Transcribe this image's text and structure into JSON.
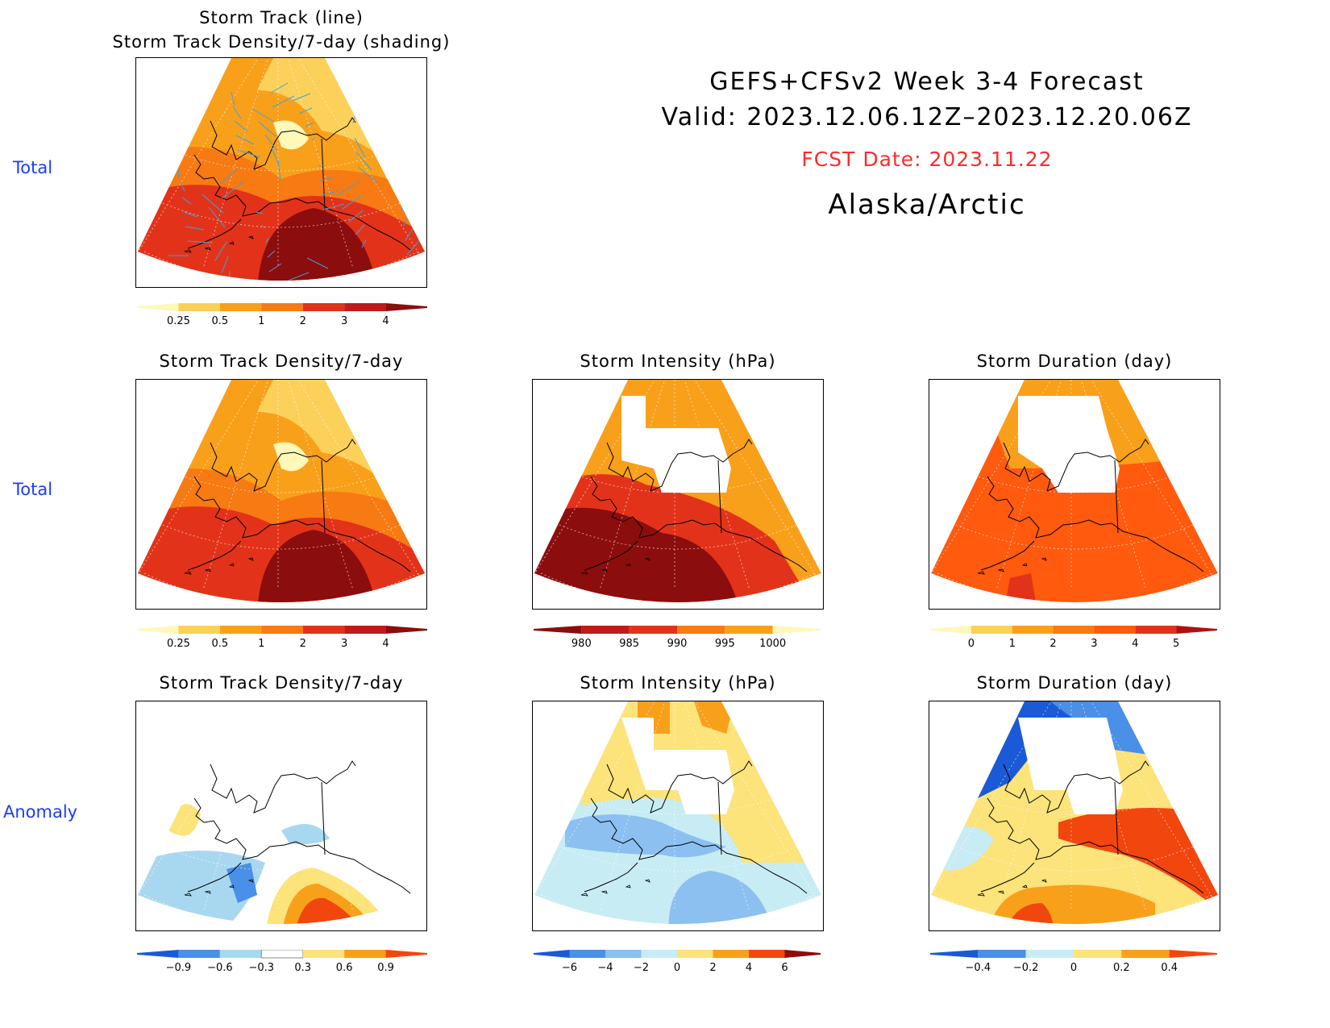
{
  "header": {
    "title": "GEFS+CFSv2 Week 3-4 Forecast",
    "valid": "Valid: 2023.12.06.12Z–2023.12.20.06Z",
    "fcst_date": "FCST Date: 2023.11.22",
    "region": "Alaska/Arctic",
    "fcst_color": "#ff2a2a"
  },
  "row_labels": {
    "row1": "Total",
    "row2": "Total",
    "row3": "Anomaly"
  },
  "panels": {
    "p1": {
      "title_line1": "Storm Track (line)",
      "title_line2": "Storm Track Density/7-day (shading)"
    },
    "p2": {
      "title": "Storm Track Density/7-day"
    },
    "p3": {
      "title": "Storm Intensity (hPa)"
    },
    "p4": {
      "title": "Storm Duration (day)"
    },
    "p5": {
      "title": "Storm Track Density/7-day"
    },
    "p6": {
      "title": "Storm Intensity (hPa)"
    },
    "p7": {
      "title": "Storm Duration (day)"
    }
  },
  "colorbars": {
    "density": {
      "labels": [
        "0.25",
        "0.5",
        "1",
        "2",
        "3",
        "4"
      ],
      "colors": [
        "#fff8b8",
        "#fcd15a",
        "#f9a01b",
        "#f77a12",
        "#e2331a",
        "#c11a1a",
        "#8c0d0d"
      ]
    },
    "intensity": {
      "labels": [
        "980",
        "985",
        "990",
        "995",
        "1000"
      ],
      "colors": [
        "#8c0d0d",
        "#c11a1a",
        "#e2331a",
        "#f77a12",
        "#f9a01b",
        "#fff8b8"
      ]
    },
    "duration": {
      "labels": [
        "0",
        "1",
        "2",
        "3",
        "4",
        "5"
      ],
      "colors": [
        "#fff8b8",
        "#fcd15a",
        "#f9a01b",
        "#f77a12",
        "#ff5a0e",
        "#e2331a",
        "#b01010"
      ]
    },
    "density_anom": {
      "labels": [
        "−0.9",
        "−0.6",
        "−0.3",
        "0.3",
        "0.6",
        "0.9"
      ],
      "colors": [
        "#1a5ad6",
        "#4a8fe8",
        "#a8d8f0",
        "#ffffff",
        "#fce37a",
        "#f9a01b",
        "#f2460f"
      ]
    },
    "intensity_anom": {
      "labels": [
        "−6",
        "−4",
        "−2",
        "0",
        "2",
        "4",
        "6"
      ],
      "colors": [
        "#1a5ad6",
        "#4a8fe8",
        "#8bc0f0",
        "#c8ecf4",
        "#fce37a",
        "#f9a01b",
        "#f2460f",
        "#8c0d0d"
      ]
    },
    "duration_anom": {
      "labels": [
        "−0.4",
        "−0.2",
        "0",
        "0.2",
        "0.4"
      ],
      "colors": [
        "#1a5ad6",
        "#4a8fe8",
        "#c8ecf4",
        "#fce37a",
        "#f9a01b",
        "#f2460f"
      ]
    }
  }
}
